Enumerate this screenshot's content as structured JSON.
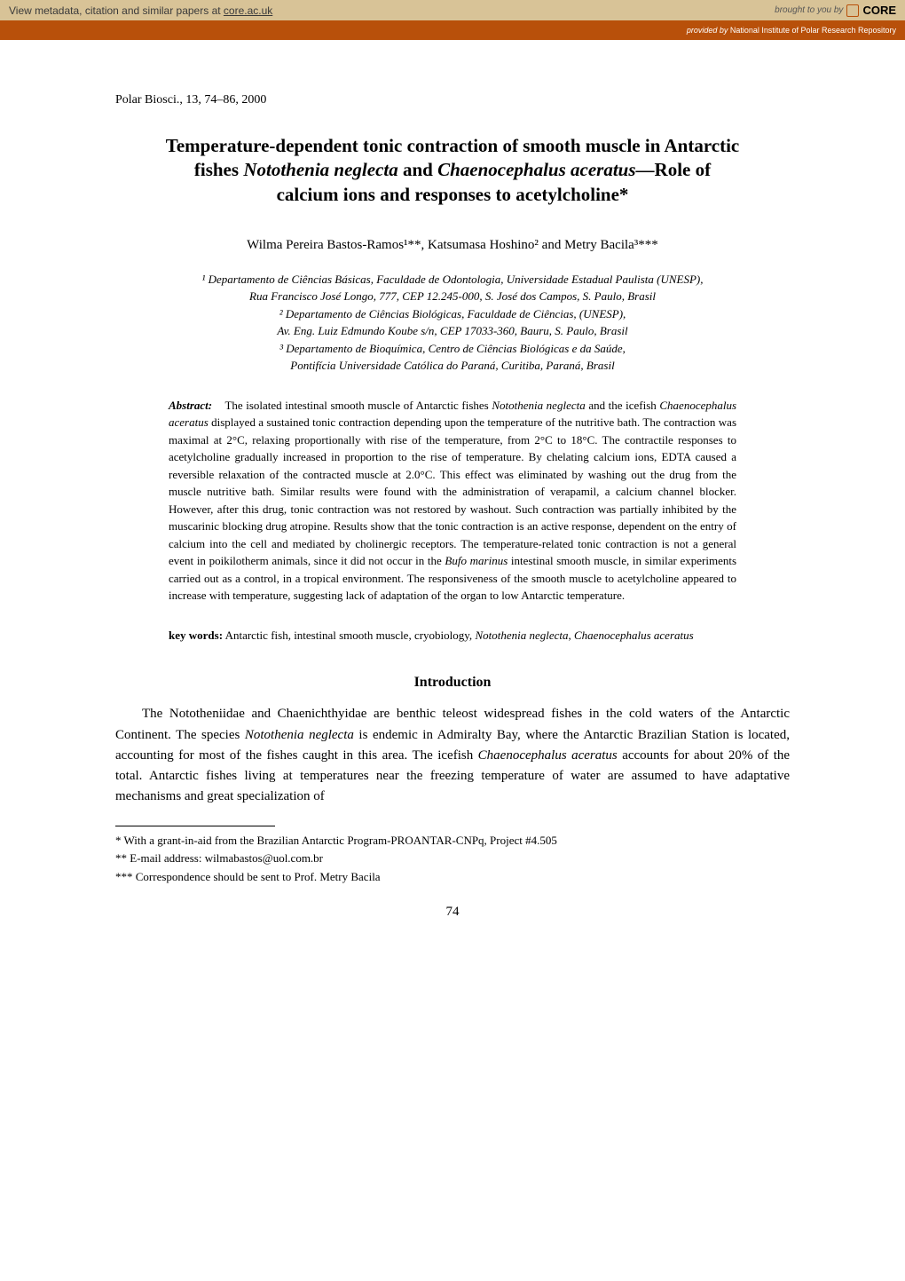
{
  "banner": {
    "left_prefix": "View metadata, citation and similar papers at ",
    "left_link": "core.ac.uk",
    "brought_by": "brought to you by",
    "core": "CORE",
    "provided_prefix": "provided by ",
    "provided_source": "National Institute of Polar Research Repository"
  },
  "citation": "Polar Biosci., 13, 74–86, 2000",
  "title": {
    "line1": "Temperature-dependent tonic contraction of smooth muscle in Antarctic",
    "line2_pre": "fishes ",
    "species1": "Notothenia neglecta",
    "line2_mid": " and ",
    "species2": "Chaenocephalus aceratus",
    "line2_post": "—Role of",
    "line3": "calcium ions and responses to acetylcholine*"
  },
  "authors": "Wilma Pereira Bastos-Ramos¹**, Katsumasa Hoshino² and Metry Bacila³***",
  "affiliations": {
    "a1": "¹ Departamento de Ciências Básicas, Faculdade de Odontologia, Universidade Estadual Paulista (UNESP),",
    "a1b": "Rua Francisco José Longo, 777, CEP 12.245-000, S. José dos Campos, S. Paulo, Brasil",
    "a2": "² Departamento de Ciências Biológicas, Faculdade de Ciências, (UNESP),",
    "a2b": "Av. Eng. Luiz Edmundo Koube s/n, CEP 17033-360, Bauru, S. Paulo, Brasil",
    "a3": "³ Departamento de Bioquímica, Centro de Ciências Biológicas e da Saúde,",
    "a3b": "Pontifícia Universidade Católica do Paraná, Curitiba, Paraná, Brasil"
  },
  "abstract": {
    "label": "Abstract:",
    "text_pre": "The isolated intestinal smooth muscle of Antarctic fishes ",
    "sp1": "Notothenia neglecta",
    "text_mid1": " and the icefish ",
    "sp2": "Chaenocephalus aceratus",
    "text_mid2": " displayed a sustained tonic contraction depending upon the temperature of the nutritive bath. The contraction was maximal at 2°C, relaxing proportionally with rise of the temperature, from 2°C to 18°C. The contractile responses to acetylcholine gradually increased in proportion to the rise of temperature. By chelating calcium ions, EDTA caused a reversible relaxation of the contracted muscle at 2.0°C. This effect was eliminated by washing out the drug from the muscle nutritive bath. Similar results were found with the administration of verapamil, a calcium channel blocker. However, after this drug, tonic contraction was not restored by washout. Such contraction was partially inhibited by the muscarinic blocking drug atropine. Results show that the tonic contraction is an active response, dependent on the entry of calcium into the cell and mediated by cholinergic receptors. The temperature-related tonic contraction is not a general event in poikilotherm animals, since it did not occur in the ",
    "sp3": "Bufo marinus",
    "text_post": " intestinal smooth muscle, in similar experiments carried out as a control, in a tropical environment. The responsiveness of the smooth muscle to acetylcholine appeared to increase with temperature, suggesting lack of adaptation of the organ to low Antarctic temperature."
  },
  "keywords": {
    "label": "key words:",
    "text_pre": "Antarctic fish, intestinal smooth muscle, cryobiology, ",
    "sp1": "Notothenia neglecta",
    "text_mid": ", ",
    "sp2": "Chaenocephalus aceratus"
  },
  "section_heading": "Introduction",
  "intro": {
    "text_pre": "The Nototheniidae and Chaenichthyidae are benthic teleost widespread fishes in the cold waters of the Antarctic Continent. The species ",
    "sp1": "Notothenia neglecta",
    "text_mid1": " is endemic in Admiralty Bay, where the Antarctic Brazilian Station is located, accounting for most of the fishes caught in this area. The icefish ",
    "sp2": "Chaenocephalus aceratus",
    "text_post": " accounts for about 20% of the total. Antarctic fishes living at temperatures near the freezing temperature of water are assumed to have adaptative mechanisms and great specialization of"
  },
  "footnotes": {
    "f1": "* With a grant-in-aid from the Brazilian Antarctic Program-PROANTAR-CNPq, Project #4.505",
    "f2": "** E-mail address: wilmabastos@uol.com.br",
    "f3": "*** Correspondence should be sent to Prof. Metry Bacila"
  },
  "page_number": "74"
}
